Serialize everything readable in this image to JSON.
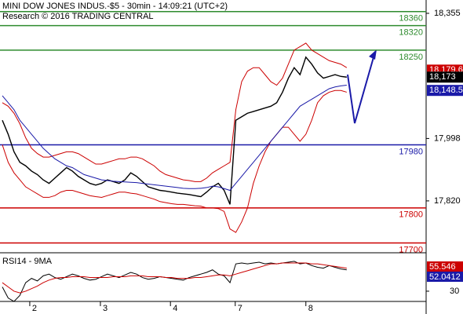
{
  "chart_data": {
    "type": "line",
    "title": "MINI DOW JONES INDUS.-$5 - 30min - 14:09:21 (UTC+2)",
    "subtitle": "Research © 2016 TRADING CENTRAL",
    "x": [
      0,
      1,
      2,
      3,
      4,
      5,
      6,
      7,
      8,
      9,
      10,
      11,
      12,
      13,
      14,
      15,
      16,
      17,
      18,
      19,
      20,
      21,
      22,
      23,
      24,
      25,
      26,
      27,
      28,
      29,
      30,
      31,
      32,
      33,
      34,
      35,
      36,
      37,
      38,
      39,
      40,
      41,
      42,
      43,
      44,
      45,
      46,
      47,
      48,
      49,
      50,
      51,
      52,
      53,
      54,
      55,
      56,
      57,
      58,
      59
    ],
    "xlim": [
      -0.4,
      72.6
    ],
    "xticks": [
      {
        "value": 4.7,
        "label": "2"
      },
      {
        "value": 16.8,
        "label": "3"
      },
      {
        "value": 28.8,
        "label": "4"
      },
      {
        "value": 39.9,
        "label": "7"
      },
      {
        "value": 52,
        "label": "8"
      }
    ],
    "ylim": [
      17672,
      18393
    ],
    "yticks": [
      {
        "value": 18355,
        "label": "18,355"
      },
      {
        "value": 17998,
        "label": "17,998"
      },
      {
        "value": 17820,
        "label": "17,820"
      }
    ],
    "series": [
      {
        "name": "Price",
        "color": "#000000",
        "values": [
          18050,
          18010,
          17960,
          17930,
          17920,
          17905,
          17895,
          17880,
          17870,
          17885,
          17900,
          17915,
          17905,
          17890,
          17880,
          17870,
          17865,
          17870,
          17880,
          17875,
          17870,
          17880,
          17900,
          17890,
          17875,
          17860,
          17855,
          17850,
          17848,
          17845,
          17842,
          17840,
          17838,
          17835,
          17832,
          17845,
          17860,
          17870,
          17850,
          17810,
          18050,
          18060,
          18070,
          18075,
          18080,
          18085,
          18090,
          18100,
          18130,
          18170,
          18200,
          18180,
          18230,
          18210,
          18185,
          18170,
          18175,
          18180,
          18175,
          18173
        ]
      },
      {
        "name": "Upper band",
        "color": "#cc0000",
        "values": [
          18100,
          18090,
          18070,
          18040,
          18000,
          17970,
          17955,
          17945,
          17945,
          17950,
          17955,
          17960,
          17960,
          17955,
          17945,
          17935,
          17925,
          17925,
          17930,
          17935,
          17940,
          17940,
          17945,
          17945,
          17940,
          17930,
          17920,
          17905,
          17895,
          17890,
          17885,
          17880,
          17878,
          17875,
          17875,
          17885,
          17900,
          17910,
          17920,
          17930,
          18080,
          18160,
          18190,
          18200,
          18200,
          18180,
          18160,
          18150,
          18170,
          18210,
          18250,
          18260,
          18270,
          18250,
          18240,
          18230,
          18220,
          18215,
          18210,
          18200
        ]
      },
      {
        "name": "Lower band",
        "color": "#cc0000",
        "values": [
          17980,
          17930,
          17900,
          17880,
          17860,
          17850,
          17840,
          17830,
          17830,
          17835,
          17845,
          17850,
          17850,
          17845,
          17840,
          17835,
          17832,
          17830,
          17835,
          17840,
          17845,
          17845,
          17842,
          17840,
          17835,
          17830,
          17825,
          17818,
          17815,
          17812,
          17810,
          17810,
          17808,
          17806,
          17805,
          17800,
          17800,
          17798,
          17790,
          17740,
          17730,
          17760,
          17800,
          17870,
          17920,
          17960,
          17990,
          18010,
          18030,
          18030,
          18010,
          17990,
          18010,
          18050,
          18100,
          18120,
          18130,
          18135,
          18135,
          18130
        ]
      },
      {
        "name": "Moving average",
        "color": "#1a1aa8",
        "values": [
          18120,
          18100,
          18080,
          18050,
          18030,
          18010,
          17990,
          17970,
          17955,
          17940,
          17930,
          17920,
          17915,
          17905,
          17895,
          17890,
          17885,
          17880,
          17878,
          17876,
          17875,
          17874,
          17873,
          17872,
          17870,
          17868,
          17866,
          17864,
          17862,
          17860,
          17858,
          17856,
          17855,
          17855,
          17856,
          17858,
          17862,
          17860,
          17855,
          17850,
          17870,
          17890,
          17910,
          17930,
          17950,
          17970,
          17990,
          18010,
          18030,
          18050,
          18070,
          18090,
          18100,
          18110,
          18120,
          18130,
          18140,
          18145,
          18148,
          18150
        ]
      }
    ],
    "levels": [
      {
        "value": 18360,
        "color": "#2e8b2e"
      },
      {
        "value": 18320,
        "color": "#2e8b2e"
      },
      {
        "value": 18250,
        "color": "#2e8b2e"
      },
      {
        "value": 17980,
        "color": "#1a1aa8"
      },
      {
        "value": 17800,
        "color": "#cc0000"
      },
      {
        "value": 17700,
        "color": "#cc0000"
      }
    ],
    "price_tags": [
      {
        "value": 18179.6,
        "label": "18,179.6",
        "color": "#cc0000"
      },
      {
        "value": 18173,
        "label": "18,173",
        "color": "#000000"
      },
      {
        "value": 18148.5,
        "label": "18,148.5",
        "color": "#1a1aa8"
      }
    ],
    "rsi": {
      "title": "RSI14 - 9MA",
      "ylim": [
        18,
        75
      ],
      "yticks": [
        30
      ],
      "series": [
        {
          "name": "RSI",
          "color": "#000000",
          "values": [
            35,
            22,
            18,
            25,
            40,
            45,
            42,
            48,
            50,
            46,
            44,
            47,
            50,
            48,
            45,
            43,
            44,
            47,
            50,
            48,
            46,
            49,
            52,
            50,
            46,
            44,
            45,
            47,
            46,
            45,
            44,
            43,
            46,
            48,
            50,
            52,
            55,
            50,
            48,
            40,
            62,
            63,
            62,
            63,
            64,
            62,
            63,
            62,
            63,
            64,
            65,
            62,
            63,
            60,
            58,
            57,
            60,
            58,
            56,
            55
          ]
        },
        {
          "name": "MA",
          "color": "#cc0000",
          "values": [
            40,
            35,
            30,
            28,
            30,
            33,
            36,
            40,
            43,
            45,
            46,
            46,
            47,
            47,
            47,
            46,
            46,
            46,
            46,
            47,
            47,
            47,
            48,
            48,
            48,
            47,
            47,
            47,
            46,
            46,
            45,
            45,
            45,
            46,
            46,
            47,
            48,
            49,
            49,
            48,
            50,
            52,
            54,
            56,
            58,
            60,
            62,
            62,
            63,
            63,
            63,
            63,
            63,
            62,
            62,
            61,
            60,
            59,
            58,
            57
          ]
        }
      ],
      "tags": [
        {
          "value": 55.546,
          "color": "#cc0000"
        },
        {
          "value": 52.0412,
          "color": "#1a1aa8"
        }
      ]
    }
  }
}
